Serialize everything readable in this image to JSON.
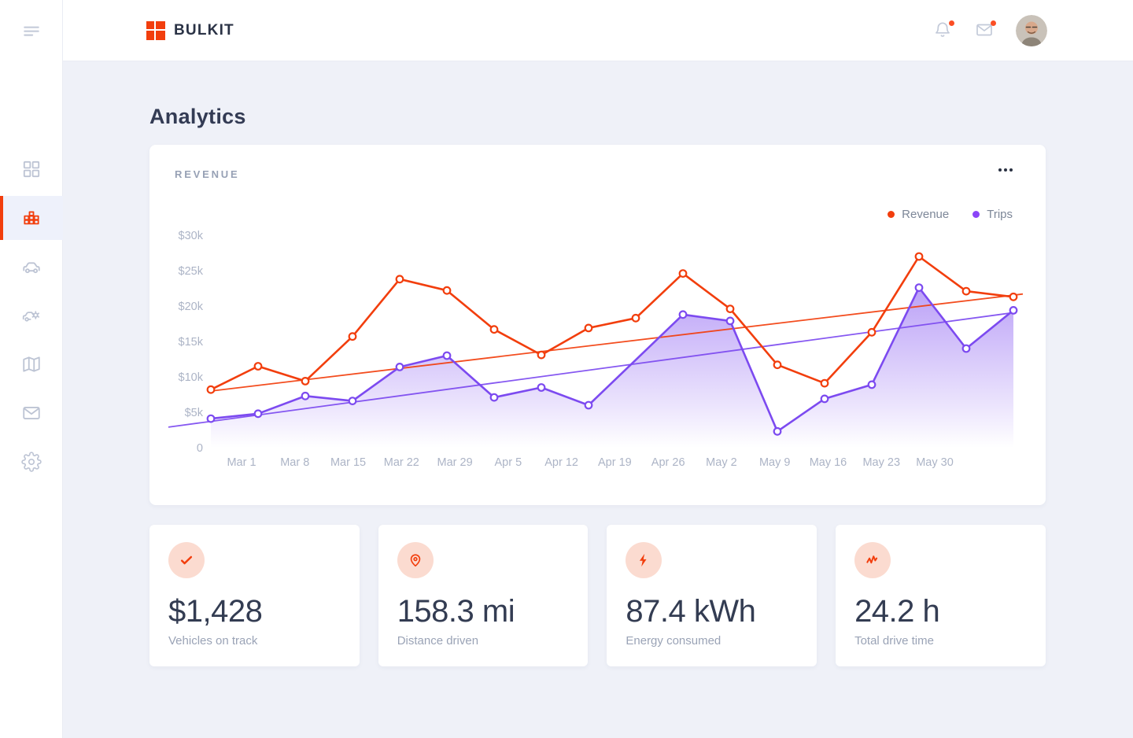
{
  "colors": {
    "accent": "#F23E0D",
    "badge": "#FB4E24",
    "revenue": "#F23E0D",
    "trips": "#7C4AF0"
  },
  "header": {
    "brand": "BULKIT",
    "actions": [
      {
        "icon": "bell-icon",
        "badge": true
      },
      {
        "icon": "mail-icon",
        "badge": true
      }
    ],
    "avatar": "user-photo"
  },
  "sidebar": {
    "menu_icon": "menu-icon",
    "items": [
      {
        "icon": "grid-icon",
        "name": "dashboard",
        "active": false
      },
      {
        "icon": "bars-icon",
        "name": "analytics",
        "active": true
      },
      {
        "icon": "car-icon",
        "name": "vehicles",
        "active": false
      },
      {
        "icon": "car-gear-icon",
        "name": "vehicle-service",
        "active": false
      },
      {
        "icon": "map-icon",
        "name": "map",
        "active": false
      },
      {
        "icon": "mail-icon",
        "name": "messages",
        "active": false
      },
      {
        "icon": "gear-icon",
        "name": "settings",
        "active": false
      }
    ]
  },
  "page": {
    "title": "Analytics"
  },
  "chart_card": {
    "title": "REVENUE",
    "menu_icon": "ellipsis-icon",
    "legend": [
      {
        "label": "Revenue",
        "color": "#F23E0D"
      },
      {
        "label": "Trips",
        "color": "#8B45F8"
      }
    ]
  },
  "chart_data": {
    "type": "line",
    "title": "REVENUE",
    "grid": false,
    "legend_position": "top-right",
    "x_labels": [
      "Mar 1",
      "Mar 8",
      "Mar 15",
      "Mar 22",
      "Mar 29",
      "Apr 5",
      "Apr 12",
      "Apr 19",
      "Apr 26",
      "May 2",
      "May 9",
      "May 16",
      "May 23",
      "May 30"
    ],
    "y_ticks": [
      "$30k",
      "$25k",
      "$20k",
      "$15k",
      "$10k",
      "$5k",
      "0"
    ],
    "y_tick_values": [
      30,
      25,
      20,
      15,
      10,
      5,
      0
    ],
    "ylim": [
      0,
      32
    ],
    "unit": "$k",
    "series": [
      {
        "name": "Trips",
        "color": "#7C4AF0",
        "area": true,
        "values": [
          4.1,
          4.8,
          7.3,
          6.6,
          11.4,
          13.0,
          7.1,
          8.5,
          6.0,
          12.4,
          18.8,
          17.9,
          2.3,
          6.9,
          8.9,
          22.6,
          14.0,
          19.4
        ],
        "marker_skip": [
          9
        ],
        "trend": {
          "from": 2.9,
          "to": 19.1
        }
      },
      {
        "name": "Revenue",
        "color": "#F23E0D",
        "area": false,
        "values": [
          8.2,
          11.5,
          9.4,
          15.7,
          23.8,
          22.2,
          16.7,
          13.1,
          16.9,
          18.3,
          24.6,
          19.6,
          11.7,
          9.1,
          16.3,
          27.0,
          22.1,
          21.3
        ],
        "marker_skip": [],
        "trend": {
          "from": 8.0,
          "to": 21.7
        }
      }
    ]
  },
  "stats": [
    {
      "icon": "check-icon",
      "value": "$1,428",
      "label": "Vehicles on track"
    },
    {
      "icon": "map-pin-icon",
      "value": "158.3 mi",
      "label": "Distance driven"
    },
    {
      "icon": "lightning-icon",
      "value": "87.4 kWh",
      "label": "Energy consumed"
    },
    {
      "icon": "activity-icon",
      "value": "24.2 h",
      "label": "Total drive time"
    }
  ]
}
